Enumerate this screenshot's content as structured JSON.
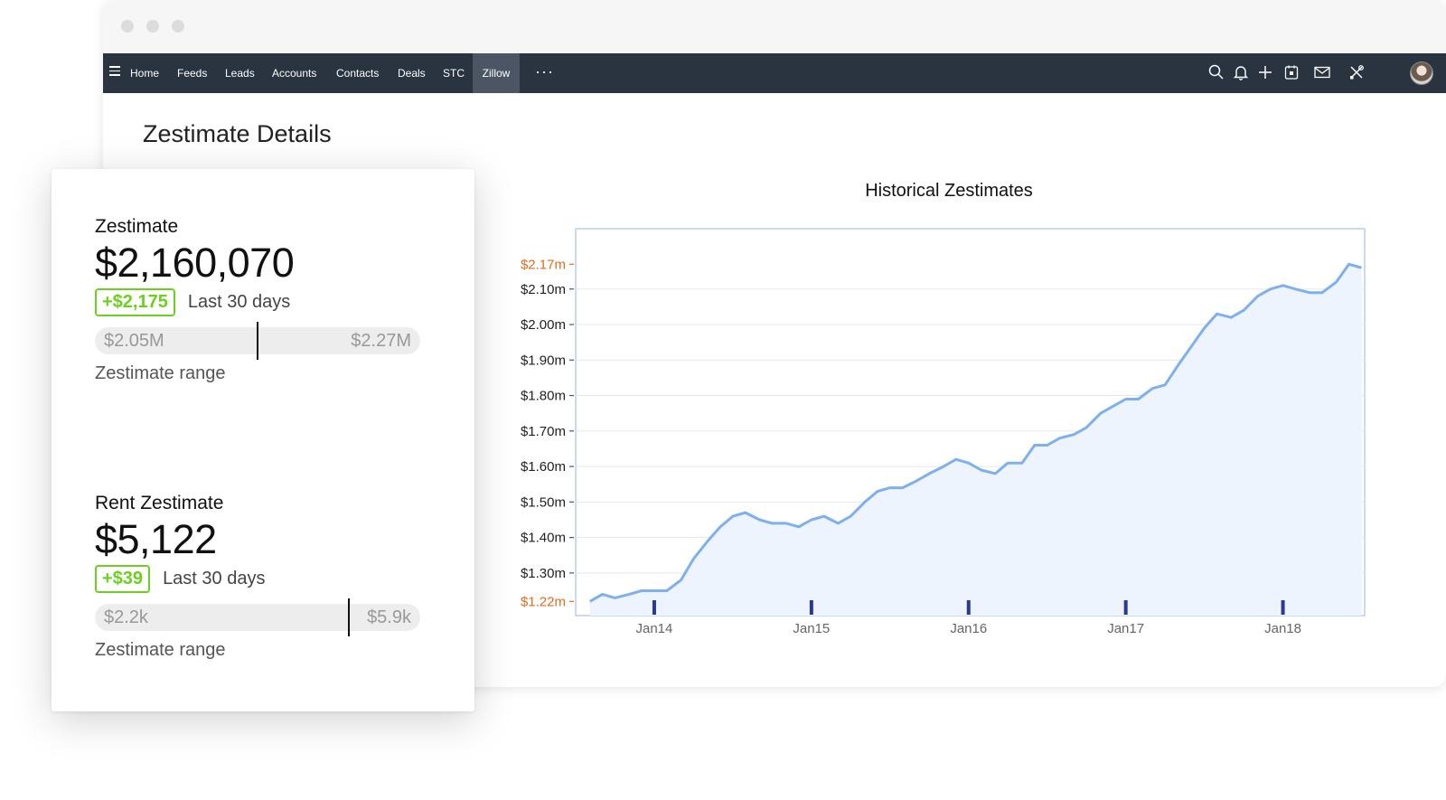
{
  "nav": {
    "items": [
      {
        "label": "Home",
        "active": false
      },
      {
        "label": "Feeds",
        "active": false
      },
      {
        "label": "Leads",
        "active": false
      },
      {
        "label": "Accounts",
        "active": false
      },
      {
        "label": "Contacts",
        "active": false
      },
      {
        "label": "Deals",
        "active": false
      },
      {
        "label": "STC",
        "active": false
      },
      {
        "label": "Zillow",
        "active": true
      }
    ],
    "more_label": "···",
    "icons": [
      "search-icon",
      "bell-icon",
      "plus-icon",
      "calendar-icon",
      "mail-icon",
      "tools-icon"
    ]
  },
  "page": {
    "title": "Zestimate Details"
  },
  "zestimate": {
    "label": "Zestimate",
    "value": "$2,160,070",
    "change": "+$2,175",
    "period": "Last 30 days",
    "range_low": "$2.05M",
    "range_high": "$2.27M",
    "range_caption": "Zestimate range",
    "marker_fraction": 0.5
  },
  "rent": {
    "label": "Rent Zestimate",
    "value": "$5,122",
    "change": "+$39",
    "period": "Last 30 days",
    "range_low": "$2.2k",
    "range_high": "$5.9k",
    "range_caption": "Zestimate range",
    "marker_fraction": 0.78
  },
  "colors": {
    "accent_green": "#6dcf1f",
    "navbar": "#2a3340",
    "line": "#7fb0ee",
    "area": "#eef4fd",
    "highlight_tick": "#e36b1e",
    "year_marker": "#2b3a8f"
  },
  "chart_data": {
    "type": "area",
    "title": "Historical Zestimates",
    "ylim": [
      1.18,
      2.27
    ],
    "y_ticks": [
      {
        "value": 1.22,
        "label": "$1.22m",
        "highlight": true
      },
      {
        "value": 1.3,
        "label": "$1.30m",
        "highlight": false
      },
      {
        "value": 1.4,
        "label": "$1.40m",
        "highlight": false
      },
      {
        "value": 1.5,
        "label": "$1.50m",
        "highlight": false
      },
      {
        "value": 1.6,
        "label": "$1.60m",
        "highlight": false
      },
      {
        "value": 1.7,
        "label": "$1.70m",
        "highlight": false
      },
      {
        "value": 1.8,
        "label": "$1.80m",
        "highlight": false
      },
      {
        "value": 1.9,
        "label": "$1.90m",
        "highlight": false
      },
      {
        "value": 2.0,
        "label": "$2.00m",
        "highlight": false
      },
      {
        "value": 2.1,
        "label": "$2.10m",
        "highlight": false
      },
      {
        "value": 2.17,
        "label": "$2.17m",
        "highlight": true
      }
    ],
    "x_ticks": [
      {
        "value": 2014.0,
        "label": "Jan14"
      },
      {
        "value": 2015.0,
        "label": "Jan15"
      },
      {
        "value": 2016.0,
        "label": "Jan16"
      },
      {
        "value": 2017.0,
        "label": "Jan17"
      },
      {
        "value": 2018.0,
        "label": "Jan18"
      }
    ],
    "xlim": [
      2013.5,
      2018.52
    ],
    "grid": true,
    "series": [
      {
        "x": [
          2013.59,
          2013.67,
          2013.75,
          2013.84,
          2013.92,
          2014.0,
          2014.08,
          2014.17,
          2014.25,
          2014.34,
          2014.42,
          2014.5,
          2014.58,
          2014.67,
          2014.75,
          2014.84,
          2014.92,
          2015.0,
          2015.08,
          2015.17,
          2015.25,
          2015.34,
          2015.42,
          2015.5,
          2015.58,
          2015.67,
          2015.75,
          2015.84,
          2015.92,
          2016.0,
          2016.08,
          2016.17,
          2016.25,
          2016.34,
          2016.42,
          2016.5,
          2016.58,
          2016.67,
          2016.75,
          2016.84,
          2016.92,
          2017.0,
          2017.08,
          2017.17,
          2017.25,
          2017.34,
          2017.42,
          2017.5,
          2017.58,
          2017.67,
          2017.75,
          2017.84,
          2017.92,
          2018.0,
          2018.08,
          2018.17,
          2018.25,
          2018.34,
          2018.42,
          2018.5
        ],
        "y": [
          1.22,
          1.24,
          1.23,
          1.24,
          1.25,
          1.25,
          1.25,
          1.28,
          1.34,
          1.39,
          1.43,
          1.46,
          1.47,
          1.45,
          1.44,
          1.44,
          1.43,
          1.45,
          1.46,
          1.44,
          1.46,
          1.5,
          1.53,
          1.54,
          1.54,
          1.56,
          1.58,
          1.6,
          1.62,
          1.61,
          1.59,
          1.58,
          1.61,
          1.61,
          1.66,
          1.66,
          1.68,
          1.69,
          1.71,
          1.75,
          1.77,
          1.79,
          1.79,
          1.82,
          1.83,
          1.89,
          1.94,
          1.99,
          2.03,
          2.02,
          2.04,
          2.08,
          2.1,
          2.11,
          2.1,
          2.09,
          2.09,
          2.12,
          2.17,
          2.16
        ]
      }
    ]
  }
}
